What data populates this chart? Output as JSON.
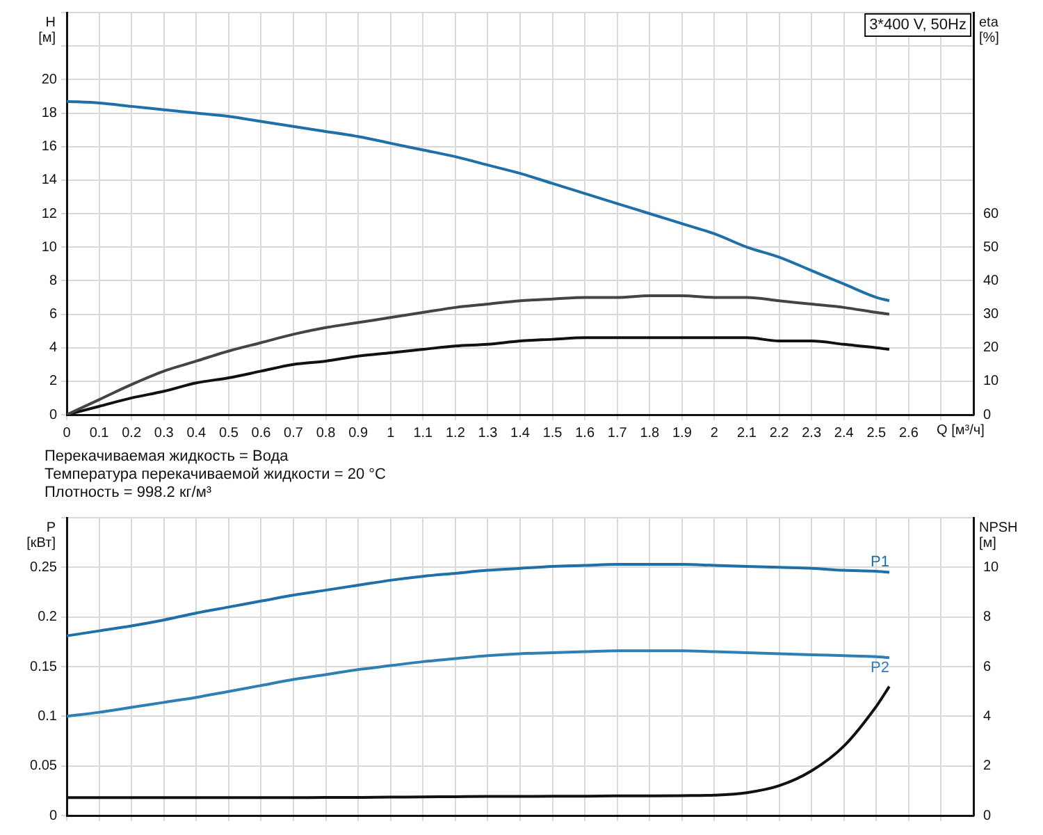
{
  "chart_data": [
    {
      "type": "line",
      "title": "3*400 V, 50Hz",
      "xlabel": "Q [м³/ч]",
      "ylabel": "H [м]",
      "y2label": "eta [%]",
      "annotations": [
        "Перекачиваемая жидкость = Вода",
        "Температура перекачиваемой жидкости = 20 °C",
        "Плотность = 998.2 кг/м³"
      ],
      "x": [
        0,
        0.1,
        0.2,
        0.3,
        0.4,
        0.5,
        0.6,
        0.7,
        0.8,
        0.9,
        1.0,
        1.1,
        1.2,
        1.3,
        1.4,
        1.5,
        1.6,
        1.7,
        1.8,
        1.9,
        2.0,
        2.1,
        2.2,
        2.3,
        2.4,
        2.5,
        2.54
      ],
      "series": [
        {
          "color": "#1f6fa8",
          "values": [
            18.7,
            18.6,
            18.4,
            18.2,
            18,
            17.8,
            17.5,
            17.2,
            16.9,
            16.6,
            16.2,
            15.8,
            15.4,
            14.9,
            14.4,
            13.8,
            13.2,
            12.6,
            12,
            11.4,
            10.8,
            10,
            9.4,
            8.6,
            7.8,
            7,
            6.8
          ]
        },
        {
          "color": "#444444",
          "axis": "y2",
          "values": [
            0,
            4.5,
            9,
            13,
            16,
            19,
            21.5,
            24,
            26,
            27.5,
            29,
            30.5,
            32,
            33,
            34,
            34.5,
            35,
            35,
            35.5,
            35.5,
            35,
            35,
            34,
            33,
            32,
            30.5,
            30
          ]
        },
        {
          "color": "#111111",
          "axis": "y2",
          "values": [
            0,
            2.5,
            5,
            7,
            9.5,
            11,
            13,
            15,
            16,
            17.5,
            18.5,
            19.5,
            20.5,
            21,
            22,
            22.5,
            23,
            23,
            23,
            23,
            23,
            23,
            22,
            22,
            21,
            20,
            19.5
          ]
        }
      ],
      "xlim": [
        0,
        2.8
      ],
      "xticks": [
        0,
        0.1,
        0.2,
        0.3,
        0.4,
        0.5,
        0.6,
        0.7,
        0.8,
        0.9,
        1.0,
        1.1,
        1.2,
        1.3,
        1.4,
        1.5,
        1.6,
        1.7,
        1.8,
        1.9,
        2.0,
        2.1,
        2.2,
        2.3,
        2.4,
        2.5,
        2.6,
        {
          "value": 2.7,
          "label": null
        }
      ],
      "ylim": [
        0,
        24
      ],
      "yticks": [
        0,
        2,
        4,
        6,
        8,
        10,
        12,
        14,
        16,
        18,
        20,
        {
          "value": 22,
          "label": null
        },
        {
          "value": 24,
          "label": null
        }
      ],
      "y2lim": [
        0,
        120
      ],
      "y2ticks": [
        0,
        10,
        20,
        30,
        40,
        50,
        60
      ],
      "grid": true,
      "legend": false,
      "marker": "none",
      "line_style": "solid"
    },
    {
      "type": "line",
      "ylabel": "P [кВт]",
      "y2label": "NPSH [м]",
      "x": [
        0,
        0.1,
        0.2,
        0.3,
        0.4,
        0.5,
        0.6,
        0.7,
        0.8,
        0.9,
        1.0,
        1.1,
        1.2,
        1.3,
        1.4,
        1.5,
        1.6,
        1.7,
        1.8,
        1.9,
        2.0,
        2.1,
        2.2,
        2.3,
        2.4,
        2.5,
        2.54
      ],
      "series": [
        {
          "name": "P1",
          "color": "#1f6fa8",
          "values": [
            0.181,
            0.186,
            0.191,
            0.197,
            0.204,
            0.21,
            0.216,
            0.222,
            0.227,
            0.232,
            0.237,
            0.241,
            0.244,
            0.247,
            0.249,
            0.251,
            0.252,
            0.253,
            0.253,
            0.253,
            0.252,
            0.251,
            0.25,
            0.249,
            0.247,
            0.246,
            0.245
          ]
        },
        {
          "name": "P2",
          "color": "#2f7fb5",
          "values": [
            0.1,
            0.104,
            0.109,
            0.114,
            0.119,
            0.125,
            0.131,
            0.137,
            0.142,
            0.147,
            0.151,
            0.155,
            0.158,
            0.161,
            0.163,
            0.164,
            0.165,
            0.166,
            0.166,
            0.166,
            0.165,
            0.164,
            0.163,
            0.162,
            0.161,
            0.16,
            0.159
          ]
        },
        {
          "color": "#111111",
          "axis": "y2",
          "values": [
            0.72,
            0.72,
            0.72,
            0.72,
            0.72,
            0.72,
            0.72,
            0.72,
            0.73,
            0.73,
            0.74,
            0.75,
            0.76,
            0.77,
            0.77,
            0.78,
            0.78,
            0.79,
            0.79,
            0.8,
            0.82,
            0.92,
            1.2,
            1.8,
            2.8,
            4.4,
            5.2
          ]
        }
      ],
      "xlim": [
        0,
        2.8
      ],
      "xticks": [
        0,
        0.1,
        0.2,
        0.3,
        0.4,
        0.5,
        0.6,
        0.7,
        0.8,
        0.9,
        1.0,
        1.1,
        1.2,
        1.3,
        1.4,
        1.5,
        1.6,
        1.7,
        1.8,
        1.9,
        2.0,
        2.1,
        2.2,
        2.3,
        2.4,
        2.5,
        2.6,
        2.7
      ],
      "ylim": [
        0,
        0.3
      ],
      "yticks": [
        0,
        0.05,
        0.1,
        0.15,
        0.2,
        0.25,
        {
          "value": 0.3,
          "label": null
        }
      ],
      "y2lim": [
        0,
        12
      ],
      "y2ticks": [
        0,
        2,
        4,
        6,
        8,
        10
      ],
      "tick_labels": "y",
      "grid": true,
      "legend": false,
      "marker": "none",
      "line_style": "solid"
    }
  ]
}
